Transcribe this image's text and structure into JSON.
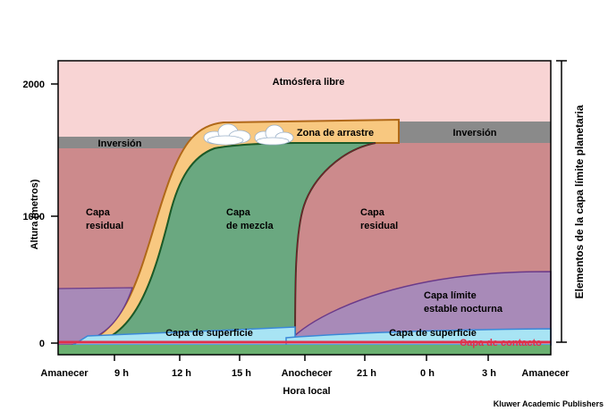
{
  "diagram": {
    "y_axis_label": "Altura (metros)",
    "y_ticks": [
      "2000",
      "1000",
      "0"
    ],
    "x_axis_label": "Hora local",
    "x_ticks": [
      "Amanecer",
      "9 h",
      "12  h",
      "15 h",
      "Anochecer",
      "21 h",
      "0 h",
      "3 h",
      "Amanecer"
    ],
    "side_label": "Elementos de la capa límite planetaria",
    "credit": "Kluwer Academic Publishers",
    "regions": {
      "free_atmosphere": "Atmósfera libre",
      "entrainment_zone": "Zona de arrastre",
      "inversion_left": "Inversión",
      "inversion_right": "Inversión",
      "residual_left_1": "Capa",
      "residual_left_2": "residual",
      "mixed_1": "Capa",
      "mixed_2": "de mezcla",
      "residual_right_1": "Capa",
      "residual_right_2": "residual",
      "stable_1": "Capa límite",
      "stable_2": "estable nocturna",
      "surface_left": "Capa de superficie",
      "surface_right": "Capa de superficie",
      "contact": "Capa de contacto"
    },
    "colors": {
      "free_atmosphere": "#f8d4d4",
      "residual": "#cc8a8c",
      "mixed": "#6aa880",
      "entrainment": "#f8c880",
      "inversion": "#8a8a8a",
      "stable": "#a88ab8",
      "surface": "#a8e4f4",
      "contact": "#e0304a",
      "ground": "#6ab070"
    }
  }
}
